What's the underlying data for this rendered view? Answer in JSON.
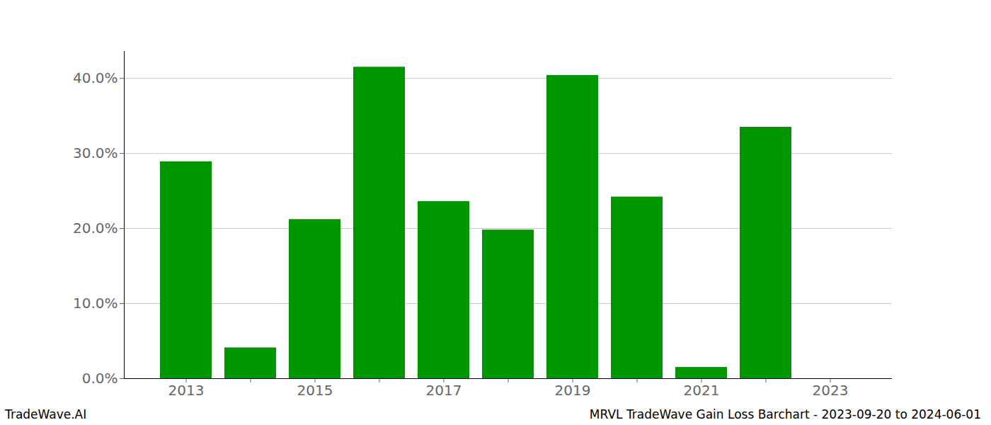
{
  "chart_data": {
    "type": "bar",
    "title": "MRVL TradeWave Gain Loss Barchart - 2023-09-20 to 2024-06-01",
    "annotations": [
      "TradeWave.AI"
    ],
    "categories": [
      "2013",
      null,
      "2015",
      null,
      "2017",
      null,
      "2019",
      null,
      "2021",
      null,
      "2023"
    ],
    "values": [
      28.9,
      4.1,
      21.2,
      41.5,
      23.6,
      19.8,
      40.4,
      24.2,
      1.5,
      33.5,
      0
    ],
    "color": "#009600",
    "ylim": [
      0,
      43.6
    ],
    "yticks": [
      {
        "value": 0,
        "label": "0.0%"
      },
      {
        "value": 10,
        "label": "10.0%"
      },
      {
        "value": 20,
        "label": "20.0%"
      },
      {
        "value": 30,
        "label": "30.0%"
      },
      {
        "value": 40,
        "label": "40.0%"
      }
    ],
    "grid": true
  }
}
